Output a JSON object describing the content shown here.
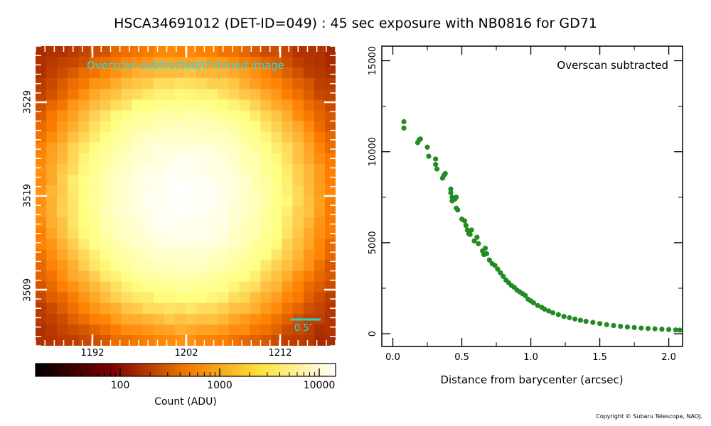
{
  "title": "HSCA34691012 (DET-ID=049) :  45 sec exposure with NB0816 for GD71",
  "image_panel": {
    "label": "Overscan-subtracted/trimmed image",
    "scale_bar_label": "0.5″",
    "scale_bar_color": "#22d6d6",
    "x_ticks": [
      "1192",
      "1202",
      "1212"
    ],
    "y_ticks": [
      "3529",
      "3519",
      "3509"
    ],
    "colormap": "afmhot"
  },
  "colorbar": {
    "tick_labels": [
      "100",
      "1000",
      "10000"
    ],
    "label": "Count (ADU)",
    "scale": "log"
  },
  "chart_data": {
    "type": "scatter",
    "annotation": "Overscan subtracted",
    "xlabel": "Distance from barycenter (arcsec)",
    "ylabel": "",
    "xlim": [
      -0.08,
      2.1
    ],
    "ylim": [
      -700,
      15800
    ],
    "x_ticks": [
      "0.0",
      "0.5",
      "1.0",
      "1.5",
      "2.0"
    ],
    "y_ticks": [
      "0",
      "5000",
      "10000",
      "15000"
    ],
    "marker_color": "#228B22",
    "series": [
      {
        "points": [
          [
            0.08,
            11650
          ],
          [
            0.08,
            11300
          ],
          [
            0.18,
            10500
          ],
          [
            0.19,
            10650
          ],
          [
            0.2,
            10700
          ],
          [
            0.25,
            10250
          ],
          [
            0.26,
            9750
          ],
          [
            0.31,
            9600
          ],
          [
            0.31,
            9300
          ],
          [
            0.32,
            9050
          ],
          [
            0.36,
            8550
          ],
          [
            0.37,
            8700
          ],
          [
            0.38,
            8800
          ],
          [
            0.42,
            7950
          ],
          [
            0.42,
            7750
          ],
          [
            0.43,
            7500
          ],
          [
            0.43,
            7300
          ],
          [
            0.45,
            7400
          ],
          [
            0.46,
            7500
          ],
          [
            0.46,
            6900
          ],
          [
            0.47,
            6800
          ],
          [
            0.5,
            6300
          ],
          [
            0.52,
            6200
          ],
          [
            0.53,
            5950
          ],
          [
            0.54,
            5700
          ],
          [
            0.55,
            5500
          ],
          [
            0.56,
            5450
          ],
          [
            0.57,
            5700
          ],
          [
            0.59,
            5100
          ],
          [
            0.61,
            5300
          ],
          [
            0.62,
            4950
          ],
          [
            0.65,
            4550
          ],
          [
            0.66,
            4350
          ],
          [
            0.67,
            4700
          ],
          [
            0.68,
            4400
          ],
          [
            0.7,
            4050
          ],
          [
            0.72,
            3850
          ],
          [
            0.74,
            3750
          ],
          [
            0.76,
            3550
          ],
          [
            0.78,
            3350
          ],
          [
            0.8,
            3150
          ],
          [
            0.82,
            2950
          ],
          [
            0.84,
            2800
          ],
          [
            0.86,
            2650
          ],
          [
            0.88,
            2550
          ],
          [
            0.9,
            2400
          ],
          [
            0.92,
            2300
          ],
          [
            0.94,
            2200
          ],
          [
            0.96,
            2100
          ],
          [
            0.98,
            1900
          ],
          [
            1.0,
            1800
          ],
          [
            1.02,
            1700
          ],
          [
            1.05,
            1550
          ],
          [
            1.08,
            1450
          ],
          [
            1.1,
            1350
          ],
          [
            1.13,
            1250
          ],
          [
            1.16,
            1150
          ],
          [
            1.2,
            1050
          ],
          [
            1.24,
            950
          ],
          [
            1.28,
            880
          ],
          [
            1.32,
            810
          ],
          [
            1.36,
            740
          ],
          [
            1.4,
            680
          ],
          [
            1.45,
            620
          ],
          [
            1.5,
            560
          ],
          [
            1.55,
            500
          ],
          [
            1.6,
            450
          ],
          [
            1.65,
            410
          ],
          [
            1.7,
            370
          ],
          [
            1.75,
            340
          ],
          [
            1.8,
            310
          ],
          [
            1.85,
            290
          ],
          [
            1.9,
            270
          ],
          [
            1.95,
            250
          ],
          [
            2.0,
            230
          ],
          [
            2.05,
            210
          ],
          [
            2.08,
            200
          ]
        ]
      }
    ]
  },
  "copyright": "Copyright © Subaru Telescope, NAOJ."
}
